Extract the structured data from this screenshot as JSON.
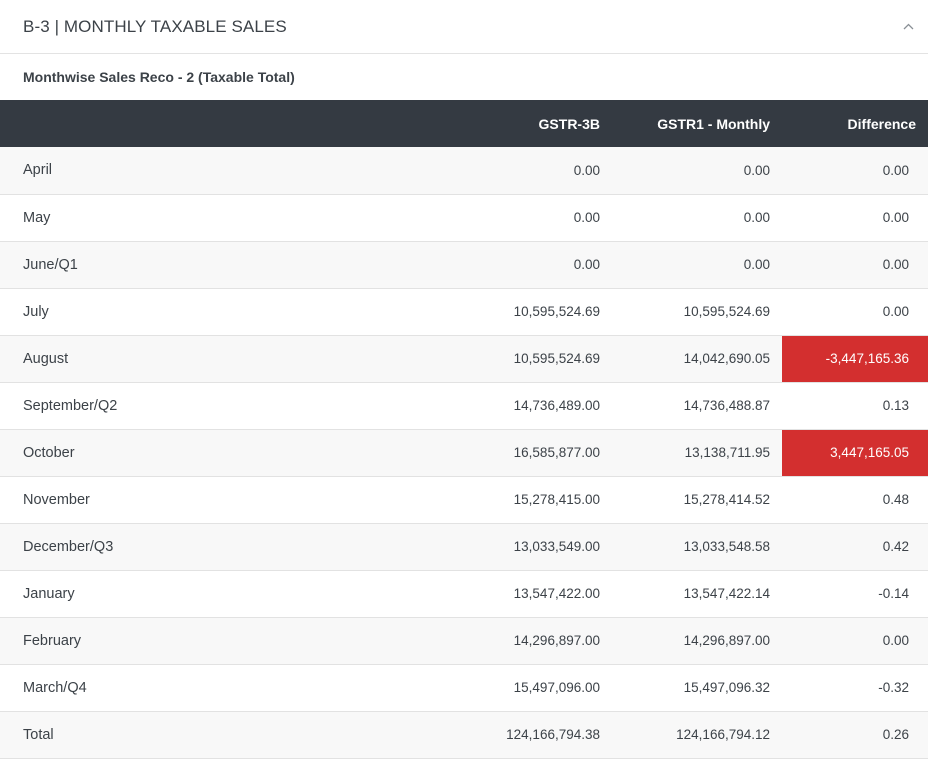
{
  "section": {
    "title": "B-3 | MONTHLY TAXABLE SALES",
    "collapse_icon": "chevron-up-icon"
  },
  "subsection": {
    "title": "Monthwise Sales Reco - 2 (Taxable Total)"
  },
  "table": {
    "columns": [
      "",
      "GSTR-3B",
      "GSTR1 - Monthly",
      "Difference"
    ],
    "alert_color": "#d32f2f",
    "header_bg": "#343a42",
    "rows": [
      {
        "month": "April",
        "gstr3b": "0.00",
        "gstr1": "0.00",
        "difference": "0.00",
        "alert": false
      },
      {
        "month": "May",
        "gstr3b": "0.00",
        "gstr1": "0.00",
        "difference": "0.00",
        "alert": false
      },
      {
        "month": "June/Q1",
        "gstr3b": "0.00",
        "gstr1": "0.00",
        "difference": "0.00",
        "alert": false
      },
      {
        "month": "July",
        "gstr3b": "10,595,524.69",
        "gstr1": "10,595,524.69",
        "difference": "0.00",
        "alert": false
      },
      {
        "month": "August",
        "gstr3b": "10,595,524.69",
        "gstr1": "14,042,690.05",
        "difference": "-3,447,165.36",
        "alert": true
      },
      {
        "month": "September/Q2",
        "gstr3b": "14,736,489.00",
        "gstr1": "14,736,488.87",
        "difference": "0.13",
        "alert": false
      },
      {
        "month": "October",
        "gstr3b": "16,585,877.00",
        "gstr1": "13,138,711.95",
        "difference": "3,447,165.05",
        "alert": true
      },
      {
        "month": "November",
        "gstr3b": "15,278,415.00",
        "gstr1": "15,278,414.52",
        "difference": "0.48",
        "alert": false
      },
      {
        "month": "December/Q3",
        "gstr3b": "13,033,549.00",
        "gstr1": "13,033,548.58",
        "difference": "0.42",
        "alert": false
      },
      {
        "month": "January",
        "gstr3b": "13,547,422.00",
        "gstr1": "13,547,422.14",
        "difference": "-0.14",
        "alert": false
      },
      {
        "month": "February",
        "gstr3b": "14,296,897.00",
        "gstr1": "14,296,897.00",
        "difference": "0.00",
        "alert": false
      },
      {
        "month": "March/Q4",
        "gstr3b": "15,497,096.00",
        "gstr1": "15,497,096.32",
        "difference": "-0.32",
        "alert": false
      },
      {
        "month": "Total",
        "gstr3b": "124,166,794.38",
        "gstr1": "124,166,794.12",
        "difference": "0.26",
        "alert": false
      }
    ]
  }
}
